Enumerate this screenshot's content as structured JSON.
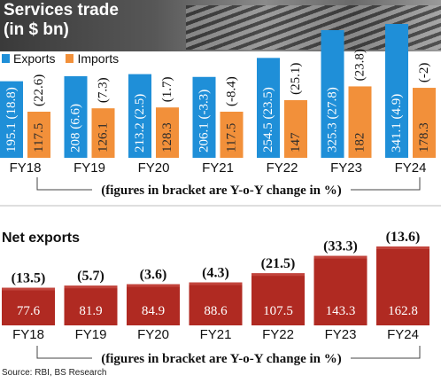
{
  "header": {
    "title": "Services trade",
    "subtitle": "(in $ bn)"
  },
  "legend": {
    "exports_label": "Exports",
    "imports_label": "Imports"
  },
  "colors": {
    "exports": "#1f8fd8",
    "imports": "#f2903a",
    "net": "#b02a22",
    "net_top": "#c2443c"
  },
  "notes": {
    "top": "(figures in bracket are Y-o-Y change in %)",
    "bottom": "(figures in bracket are Y-o-Y change in %)"
  },
  "net_section": {
    "title": "Net exports"
  },
  "source": "Source: RBI, BS Research",
  "chart_data": [
    {
      "type": "bar",
      "title": "Services trade",
      "subtitle": "(in $ bn)",
      "categories": [
        "FY18",
        "FY19",
        "FY20",
        "FY21",
        "FY22",
        "FY23",
        "FY24"
      ],
      "series": [
        {
          "name": "Exports",
          "values": [
            195.1,
            208,
            213.2,
            206.1,
            254.5,
            325.3,
            341.1
          ],
          "labels": [
            "195.1 (18.8)",
            "208 (6.6)",
            "213.2 (2.5)",
            "206.1 (-3.3)",
            "254.5 (23.5)",
            "325.3 (27.8)",
            "341.1 (4.9)"
          ]
        },
        {
          "name": "Imports",
          "values": [
            117.5,
            126.1,
            128.3,
            117.5,
            147,
            182,
            178.3
          ],
          "labels": [
            "117.5",
            "126.1",
            "128.3",
            "117.5",
            "147",
            "182",
            "178.3"
          ],
          "yoy_labels": [
            "(22.6)",
            "(7.3)",
            "(1.7)",
            "(-8.4)",
            "(25.1)",
            "(23.8)",
            "(-2)"
          ]
        }
      ]
    },
    {
      "type": "bar",
      "title": "Net exports",
      "categories": [
        "FY18",
        "FY19",
        "FY20",
        "FY21",
        "FY22",
        "FY23",
        "FY24"
      ],
      "series": [
        {
          "name": "Net exports",
          "values": [
            77.6,
            81.9,
            84.9,
            88.6,
            107.5,
            143.3,
            162.8
          ],
          "labels": [
            "77.6",
            "81.9",
            "84.9",
            "88.6",
            "107.5",
            "143.3",
            "162.8"
          ],
          "yoy_labels": [
            "(13.5)",
            "(5.7)",
            "(3.6)",
            "(4.3)",
            "(21.5)",
            "(33.3)",
            "(13.6)"
          ]
        }
      ]
    }
  ]
}
